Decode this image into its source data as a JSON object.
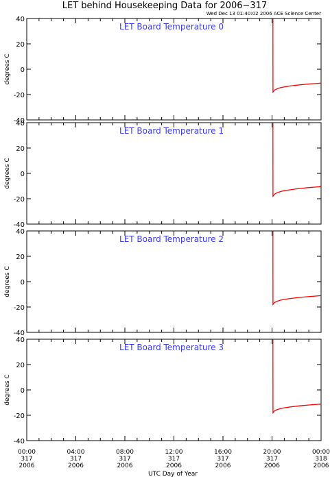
{
  "chart_data": {
    "type": "line",
    "title": "LET behind Housekeeping Data for 2006−317",
    "subtitle": "Wed Dec 13 01:40:02 2006 ACE Science Center",
    "xlabel": "UTC Day of Year",
    "xlim": [
      0,
      24
    ],
    "x_tick_labels": [
      [
        "00:00",
        "317",
        "2006"
      ],
      [
        "04:00",
        "317",
        "2006"
      ],
      [
        "08:00",
        "317",
        "2006"
      ],
      [
        "12:00",
        "317",
        "2006"
      ],
      [
        "16:00",
        "317",
        "2006"
      ],
      [
        "20:00",
        "317",
        "2006"
      ],
      [
        "00:00",
        "318",
        "2006"
      ]
    ],
    "line_color": "#ff0000",
    "panels": [
      {
        "title": "LET Board Temperature 0",
        "ylabel": "degrees C",
        "ylim": [
          -40,
          40
        ],
        "y_ticks": [
          -40,
          -20,
          0,
          20,
          40
        ],
        "series": [
          {
            "x": [
              20.07,
              20.08,
              20.2,
              20.4,
              20.7,
              21.0,
              21.5,
              22.0,
              22.5,
              23.0,
              23.5,
              24.0
            ],
            "y": [
              40,
              -18,
              -16.5,
              -15.5,
              -14.5,
              -14,
              -13.2,
              -12.6,
              -12.1,
              -11.7,
              -11.3,
              -11
            ]
          }
        ]
      },
      {
        "title": "LET Board Temperature 1",
        "ylabel": "degrees C",
        "ylim": [
          -40,
          40
        ],
        "y_ticks": [
          -40,
          -20,
          0,
          20,
          40
        ],
        "series": [
          {
            "x": [
              20.07,
              20.08,
              20.2,
              20.4,
              20.7,
              21.0,
              21.5,
              22.0,
              22.5,
              23.0,
              23.5,
              24.0
            ],
            "y": [
              40,
              -18,
              -16.5,
              -15.3,
              -14.3,
              -13.7,
              -12.9,
              -12.2,
              -11.7,
              -11.2,
              -10.8,
              -10.5
            ]
          }
        ]
      },
      {
        "title": "LET Board Temperature 2",
        "ylabel": "degrees C",
        "ylim": [
          -40,
          40
        ],
        "y_ticks": [
          -40,
          -20,
          0,
          20,
          40
        ],
        "series": [
          {
            "x": [
              20.07,
              20.08,
              20.2,
              20.4,
              20.7,
              21.0,
              21.5,
              22.0,
              22.5,
              23.0,
              23.5,
              24.0
            ],
            "y": [
              40,
              -18,
              -16.5,
              -15.5,
              -14.6,
              -14,
              -13.3,
              -12.7,
              -12.2,
              -11.8,
              -11.4,
              -11
            ]
          }
        ]
      },
      {
        "title": "LET Board Temperature 3",
        "ylabel": "degrees C",
        "ylim": [
          -40,
          40
        ],
        "y_ticks": [
          -40,
          -20,
          0,
          20,
          40
        ],
        "series": [
          {
            "x": [
              20.07,
              20.08,
              20.2,
              20.4,
              20.7,
              21.0,
              21.5,
              22.0,
              22.5,
              23.0,
              23.5,
              24.0
            ],
            "y": [
              40,
              -18,
              -16.6,
              -15.6,
              -14.7,
              -14.1,
              -13.4,
              -12.8,
              -12.3,
              -11.9,
              -11.5,
              -11.2
            ]
          }
        ]
      }
    ]
  }
}
